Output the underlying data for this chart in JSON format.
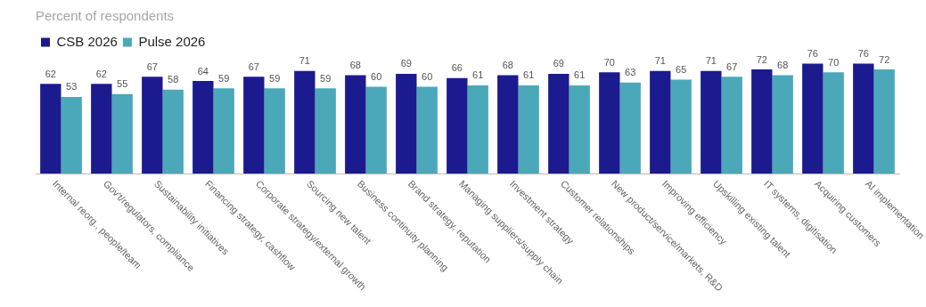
{
  "chart_data": {
    "type": "bar",
    "title": "Percent of respondents",
    "categories": [
      "Internal reorg., people/team",
      "Gov't/regulators, compliance",
      "Sustainability initiatives",
      "Financing strategy, cashflow",
      "Corporate strategy/external growth",
      "Sourcing new talent",
      "Business continuity planning",
      "Brand strategy, reputation",
      "Managing suppliers/supply chain",
      "Investment strategy",
      "Customer relationships",
      "New product/service/markets, R&D",
      "Improving efficiency",
      "Upskilling existing talent",
      "IT systems, digitisation",
      "Acquiring customers",
      "AI implementation"
    ],
    "series": [
      {
        "name": "CSB 2026",
        "color": "#1b1a8f",
        "values": [
          62,
          62,
          67,
          64,
          67,
          71,
          68,
          69,
          66,
          68,
          69,
          70,
          71,
          71,
          72,
          76,
          76
        ]
      },
      {
        "name": "Pulse 2026",
        "color": "#4aa8b9",
        "values": [
          53,
          55,
          58,
          59,
          59,
          59,
          60,
          60,
          61,
          61,
          61,
          63,
          65,
          67,
          68,
          70,
          72
        ]
      }
    ],
    "tick_labels": "x",
    "data_labels": true,
    "legend": "top left",
    "grid": false
  }
}
